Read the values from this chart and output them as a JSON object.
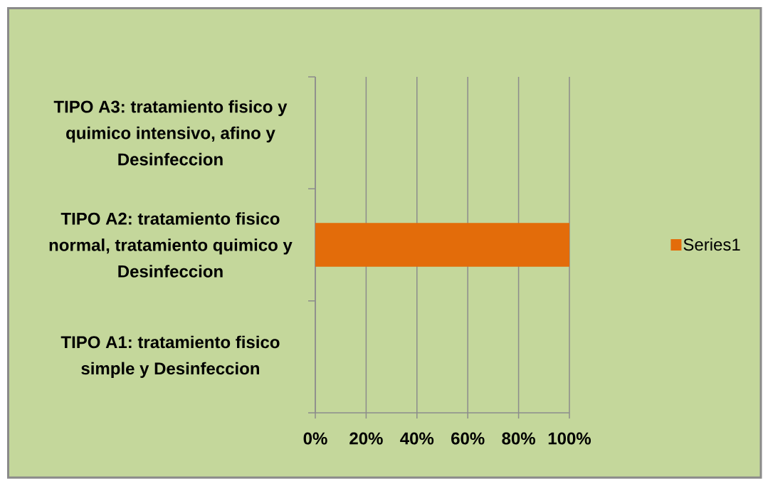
{
  "chart_data": {
    "type": "bar",
    "orientation": "horizontal",
    "categories": [
      "TIPO A3: tratamiento fisico y quimico intensivo, afino y Desinfeccion",
      "TIPO A2: tratamiento fisico normal, tratamiento quimico y Desinfeccion",
      "TIPO A1: tratamiento fisico simple y Desinfeccion"
    ],
    "series": [
      {
        "name": "Series1",
        "color": "#e36c0a",
        "values": [
          0,
          100,
          0
        ]
      }
    ],
    "xlim": [
      0,
      100
    ],
    "xticks": [
      {
        "value": 0,
        "label": "0%"
      },
      {
        "value": 20,
        "label": "20%"
      },
      {
        "value": 40,
        "label": "40%"
      },
      {
        "value": 60,
        "label": "60%"
      },
      {
        "value": 80,
        "label": "80%"
      },
      {
        "value": 100,
        "label": "100%"
      }
    ],
    "grid": "x",
    "legend": "right"
  }
}
